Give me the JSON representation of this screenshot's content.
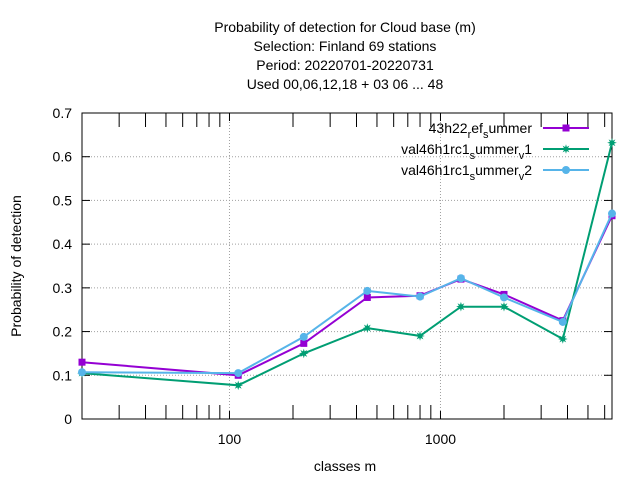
{
  "chart_data": {
    "type": "line",
    "title_lines": [
      "Probability of detection  for Cloud base (m)",
      "Selection: Finland     69 stations",
      "Period: 20220701-20220731",
      "Used  00,06,12,18  + 03 06 ... 48"
    ],
    "xlabel": "classes m",
    "ylabel": "Probability of detection",
    "x_scale": "log",
    "xlim": [
      20,
      6500
    ],
    "ylim": [
      0,
      0.7
    ],
    "x_ticks": [
      {
        "value": 100,
        "label": "100"
      },
      {
        "value": 1000,
        "label": "1000"
      }
    ],
    "y_ticks": [
      {
        "value": 0,
        "label": "0"
      },
      {
        "value": 0.1,
        "label": "0.1"
      },
      {
        "value": 0.2,
        "label": "0.2"
      },
      {
        "value": 0.3,
        "label": "0.3"
      },
      {
        "value": 0.4,
        "label": "0.4"
      },
      {
        "value": 0.5,
        "label": "0.5"
      },
      {
        "value": 0.6,
        "label": "0.6"
      },
      {
        "value": 0.7,
        "label": "0.7"
      }
    ],
    "grid": true,
    "legend_position": "top-right",
    "x": [
      20,
      110,
      225,
      450,
      800,
      1250,
      2000,
      3800,
      6500
    ],
    "series": [
      {
        "name": "43h22_ref_summer",
        "legend_base": "43h22",
        "legend_sub1": "r",
        "legend_mid": "ef",
        "legend_sub2": "s",
        "legend_tail": "ummer",
        "legend_sub3": "",
        "legend_end": "",
        "color": "#9400d3",
        "marker": "square",
        "values": [
          0.13,
          0.1,
          0.173,
          0.278,
          0.282,
          0.32,
          0.285,
          0.225,
          0.465
        ]
      },
      {
        "name": "val46h1rc1_summer_v1",
        "legend_base": "val46h1rc1",
        "legend_sub1": "s",
        "legend_mid": "ummer",
        "legend_sub2": "v",
        "legend_tail": "1",
        "legend_sub3": "",
        "legend_end": "",
        "color": "#009e73",
        "marker": "star",
        "values": [
          0.105,
          0.077,
          0.15,
          0.208,
          0.19,
          0.257,
          0.257,
          0.183,
          0.632
        ]
      },
      {
        "name": "val46h1rc1_summer_v2",
        "legend_base": "val46h1rc1",
        "legend_sub1": "s",
        "legend_mid": "ummer",
        "legend_sub2": "v",
        "legend_tail": "2",
        "legend_sub3": "",
        "legend_end": "",
        "color": "#56b4e9",
        "marker": "circle",
        "values": [
          0.107,
          0.105,
          0.188,
          0.293,
          0.28,
          0.322,
          0.278,
          0.222,
          0.47
        ]
      }
    ]
  }
}
